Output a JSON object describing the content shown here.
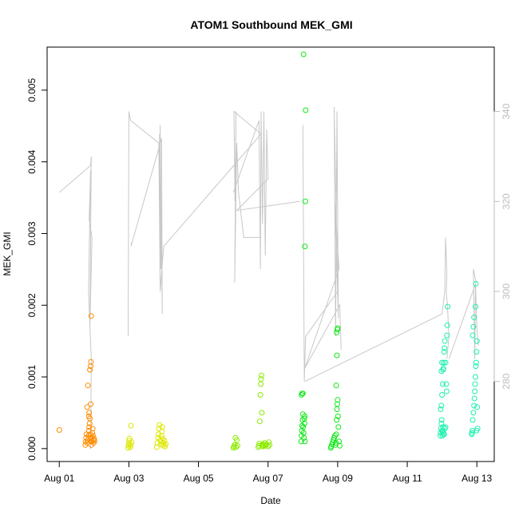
{
  "chart_data": {
    "type": "scatter",
    "title": "ATOM1 Southbound MEK_GMI",
    "xlabel": "Date",
    "ylabel": "MEK_GMI",
    "x_ticks": [
      "Aug 01",
      "Aug 03",
      "Aug 05",
      "Aug 07",
      "Aug 09",
      "Aug 11",
      "Aug 13"
    ],
    "xlim_days": [
      0.65,
      13.5
    ],
    "ylim": [
      -0.00018,
      0.0056
    ],
    "y_ticks": [
      0.0,
      0.001,
      0.002,
      0.003,
      0.004,
      0.005
    ],
    "y_tick_labels": [
      "0.000",
      "0.001",
      "0.002",
      "0.003",
      "0.004",
      "0.005"
    ],
    "secondary_axis": {
      "side": "right",
      "color": "#bdbdbd",
      "ylim": [
        262.2,
        354.3
      ],
      "ticks": [
        280,
        300,
        320,
        340
      ],
      "tick_labels": [
        "280",
        "300",
        "320",
        "340"
      ]
    },
    "grid": false,
    "legend": "none",
    "series": [
      {
        "color": "#ff8c00",
        "points": [
          [
            1.0,
            0.00026
          ],
          [
            1.75,
            5e-05
          ],
          [
            1.76,
            0.0001
          ],
          [
            1.77,
            0.00015
          ],
          [
            1.78,
            0.0002
          ],
          [
            1.8,
            8e-05
          ],
          [
            1.82,
            0.00012
          ],
          [
            1.84,
            0.00018
          ],
          [
            1.85,
            0.00025
          ],
          [
            1.86,
            0.0003
          ],
          [
            1.87,
            0.00035
          ],
          [
            1.88,
            0.00042
          ],
          [
            1.89,
            0.0002
          ],
          [
            1.9,
            0.00015
          ],
          [
            1.91,
            0.0001
          ],
          [
            1.92,
            5e-05
          ],
          [
            1.93,
            0.0001
          ],
          [
            1.94,
            0.00015
          ],
          [
            1.95,
            0.00022
          ],
          [
            1.96,
            0.00028
          ],
          [
            1.97,
            0.00018
          ],
          [
            1.98,
            0.00012
          ],
          [
            1.99,
            8e-05
          ],
          [
            2.0,
            0.00014
          ],
          [
            2.01,
            0.00011
          ],
          [
            1.8,
            0.00058
          ],
          [
            1.9,
            0.00062
          ],
          [
            1.82,
            0.00088
          ],
          [
            1.88,
            0.0011
          ],
          [
            1.9,
            0.00115
          ],
          [
            1.91,
            0.00121
          ],
          [
            1.92,
            0.00185
          ],
          [
            1.85,
            0.00045
          ],
          [
            1.86,
            0.0005
          ]
        ]
      },
      {
        "color": "#dde800",
        "points": [
          [
            2.98,
            1e-05
          ],
          [
            2.99,
            4e-05
          ],
          [
            3.0,
            7e-05
          ],
          [
            3.01,
            0.00011
          ],
          [
            3.02,
            0.00014
          ],
          [
            3.04,
            2e-05
          ],
          [
            3.05,
            5e-05
          ],
          [
            3.06,
            0.00032
          ],
          [
            3.08,
            9e-05
          ],
          [
            3.8,
            2e-05
          ],
          [
            3.82,
            8e-05
          ],
          [
            3.84,
            0.00015
          ],
          [
            3.85,
            0.0002
          ],
          [
            3.86,
            0.00028
          ],
          [
            3.88,
            0.00033
          ],
          [
            3.9,
            0.00012
          ],
          [
            3.92,
            6e-05
          ],
          [
            3.93,
            0.0001
          ],
          [
            3.94,
            0.00018
          ],
          [
            3.95,
            0.00024
          ],
          [
            3.96,
            0.0003
          ],
          [
            3.97,
            0.00014
          ],
          [
            3.98,
            4e-05
          ],
          [
            4.0,
            8e-05
          ],
          [
            4.02,
            0.00011
          ],
          [
            4.04,
            3e-05
          ],
          [
            4.06,
            6e-05
          ]
        ]
      },
      {
        "color": "#8ceb00",
        "points": [
          [
            6.0,
            1e-05
          ],
          [
            6.02,
            3e-05
          ],
          [
            6.04,
            5e-05
          ],
          [
            6.06,
            0.00015
          ],
          [
            6.08,
            2e-05
          ],
          [
            6.1,
            0.00012
          ],
          [
            6.12,
            4e-05
          ],
          [
            6.72,
            2e-05
          ],
          [
            6.74,
            4e-05
          ],
          [
            6.75,
            7e-05
          ],
          [
            6.76,
            0.00038
          ],
          [
            6.78,
            0.00075
          ],
          [
            6.79,
            0.0009
          ],
          [
            6.8,
            0.00097
          ],
          [
            6.81,
            0.00102
          ],
          [
            6.82,
            0.0005
          ],
          [
            6.83,
            4e-05
          ],
          [
            6.84,
            6e-05
          ],
          [
            6.86,
            3e-05
          ],
          [
            6.88,
            5e-05
          ],
          [
            6.9,
            8e-05
          ],
          [
            6.92,
            4e-05
          ],
          [
            6.95,
            6e-05
          ],
          [
            7.0,
            3e-05
          ],
          [
            7.02,
            9e-05
          ],
          [
            7.04,
            5e-05
          ]
        ]
      },
      {
        "color": "#10e818",
        "points": [
          [
            7.95,
            0.0001
          ],
          [
            7.96,
            0.00018
          ],
          [
            7.97,
            0.00025
          ],
          [
            7.98,
            0.00032
          ],
          [
            7.99,
            0.0004
          ],
          [
            8.0,
            0.00048
          ],
          [
            8.01,
            0.0003
          ],
          [
            8.02,
            0.00022
          ],
          [
            8.03,
            0.00015
          ],
          [
            8.04,
            0.00042
          ],
          [
            8.05,
            0.00045
          ],
          [
            8.06,
            0.0001
          ],
          [
            7.96,
            0.00075
          ],
          [
            7.98,
            0.00077
          ],
          [
            8.0,
            0.00077
          ],
          [
            8.02,
            0.0055
          ],
          [
            8.06,
            0.00282
          ],
          [
            8.07,
            0.00345
          ],
          [
            8.08,
            0.00472
          ],
          [
            8.05,
            0.00035
          ],
          [
            8.8,
            1e-05
          ],
          [
            8.82,
            3e-05
          ],
          [
            8.84,
            6e-05
          ],
          [
            8.86,
            9e-05
          ],
          [
            8.88,
            0.00012
          ],
          [
            8.9,
            0.00015
          ],
          [
            8.92,
            0.00018
          ],
          [
            8.94,
            5e-05
          ],
          [
            8.95,
            8e-05
          ],
          [
            8.96,
            0.0002
          ],
          [
            8.97,
            0.0004
          ],
          [
            8.98,
            0.00055
          ],
          [
            8.99,
            0.00062
          ],
          [
            9.0,
            0.00068
          ],
          [
            9.01,
            0.00045
          ],
          [
            9.02,
            0.0003
          ],
          [
            8.96,
            0.00088
          ],
          [
            8.98,
            0.0013
          ],
          [
            8.97,
            0.00162
          ],
          [
            8.99,
            0.00166
          ],
          [
            9.0,
            0.00168
          ],
          [
            9.04,
            0.0001
          ],
          [
            9.06,
            4e-05
          ]
        ]
      },
      {
        "color": "#1ef0b0",
        "points": [
          [
            11.95,
            0.00018
          ],
          [
            11.96,
            0.00022
          ],
          [
            11.97,
            0.00028
          ],
          [
            11.98,
            0.00035
          ],
          [
            11.99,
            0.0004
          ],
          [
            12.0,
            0.00025
          ],
          [
            12.01,
            0.00018
          ],
          [
            12.02,
            0.00024
          ],
          [
            12.03,
            0.0003
          ],
          [
            12.04,
            0.00022
          ],
          [
            12.05,
            0.0002
          ],
          [
            12.06,
            0.0002
          ],
          [
            12.08,
            0.00028
          ],
          [
            12.1,
            0.0003
          ],
          [
            11.96,
            0.00055
          ],
          [
            11.98,
            0.0006
          ],
          [
            12.0,
            0.00075
          ],
          [
            12.02,
            0.0009
          ],
          [
            12.03,
            0.0011
          ],
          [
            12.04,
            0.00112
          ],
          [
            12.05,
            0.0012
          ],
          [
            12.06,
            0.00135
          ],
          [
            12.07,
            0.0014
          ],
          [
            12.08,
            0.0015
          ],
          [
            12.1,
            0.0012
          ],
          [
            12.12,
            0.0009
          ],
          [
            12.13,
            0.0008
          ],
          [
            12.14,
            0.00158
          ],
          [
            12.15,
            0.00172
          ],
          [
            12.16,
            0.00198
          ],
          [
            11.98,
            0.00108
          ],
          [
            12.0,
            0.0012
          ],
          [
            12.85,
            0.0002
          ],
          [
            12.87,
            0.00025
          ],
          [
            12.88,
            0.0004
          ],
          [
            12.9,
            0.0005
          ],
          [
            12.92,
            0.0006
          ],
          [
            12.93,
            0.0007
          ],
          [
            12.94,
            0.0008
          ],
          [
            12.95,
            0.0009
          ],
          [
            12.96,
            0.001
          ],
          [
            12.97,
            0.00115
          ],
          [
            12.98,
            0.0012
          ],
          [
            12.99,
            0.00135
          ],
          [
            13.0,
            0.0015
          ],
          [
            12.86,
            0.00022
          ],
          [
            12.88,
            0.00158
          ],
          [
            12.9,
            0.0017
          ],
          [
            12.92,
            0.00183
          ],
          [
            12.96,
            0.00198
          ],
          [
            12.97,
            0.0023
          ],
          [
            12.99,
            0.00025
          ],
          [
            13.02,
            0.00028
          ],
          [
            13.01,
            0.00058
          ]
        ]
      }
    ],
    "secondary_series": {
      "name": "",
      "color": "#c8c8c8",
      "axis": "right",
      "segments": [
        [
          [
            1.0,
            322
          ],
          [
            1.9,
            328
          ],
          [
            1.92,
            330
          ],
          [
            1.88,
            292
          ],
          [
            1.94,
            312
          ],
          [
            1.86,
            316
          ],
          [
            1.9,
            327
          ],
          [
            1.84,
            300
          ],
          [
            1.92,
            285
          ],
          [
            1.9,
            265
          ]
        ],
        [
          [
            2.98,
            290
          ],
          [
            3.0,
            340
          ],
          [
            3.05,
            338
          ],
          [
            3.86,
            333
          ],
          [
            3.9,
            300
          ],
          [
            3.88,
            335
          ],
          [
            3.92,
            305
          ],
          [
            3.9,
            337
          ],
          [
            3.96,
            295
          ],
          [
            3.94,
            334
          ],
          [
            3.06,
            310
          ],
          [
            3.08,
            311
          ]
        ],
        [
          [
            3.9,
            300
          ],
          [
            4.0,
            310
          ],
          [
            6.8,
            335
          ],
          [
            6.02,
            340
          ],
          [
            6.05,
            320
          ],
          [
            6.08,
            340
          ],
          [
            6.04,
            302
          ],
          [
            6.1,
            333
          ],
          [
            6.15,
            322
          ],
          [
            6.3,
            312
          ],
          [
            6.8,
            312
          ]
        ],
        [
          [
            6.0,
            322
          ],
          [
            6.74,
            338
          ],
          [
            6.78,
            305
          ],
          [
            6.8,
            340
          ],
          [
            6.84,
            315
          ],
          [
            6.88,
            340
          ],
          [
            6.92,
            308
          ],
          [
            6.96,
            336
          ],
          [
            7.0,
            325
          ],
          [
            6.1,
            318
          ],
          [
            7.9,
            320
          ]
        ],
        [
          [
            8.0,
            337
          ],
          [
            8.04,
            280
          ],
          [
            8.06,
            285
          ],
          [
            8.08,
            290
          ],
          [
            9.0,
            300
          ],
          [
            8.9,
            341
          ],
          [
            8.94,
            290
          ],
          [
            8.98,
            340
          ],
          [
            9.02,
            294
          ],
          [
            8.92,
            320
          ],
          [
            9.04,
            305
          ],
          [
            8.06,
            283
          ],
          [
            9.06,
            297
          ],
          [
            9.1,
            287
          ]
        ],
        [
          [
            8.06,
            280
          ],
          [
            12.0,
            295
          ],
          [
            12.08,
            300
          ],
          [
            12.1,
            312
          ],
          [
            12.14,
            304
          ],
          [
            12.12,
            300
          ],
          [
            12.16,
            296
          ],
          [
            12.2,
            290
          ],
          [
            12.14,
            285
          ],
          [
            12.2,
            290
          ]
        ],
        [
          [
            12.2,
            285
          ],
          [
            12.98,
            302
          ],
          [
            12.9,
            305
          ],
          [
            12.94,
            285
          ],
          [
            12.96,
            302
          ],
          [
            13.0,
            292
          ],
          [
            13.04,
            288
          ]
        ]
      ]
    }
  }
}
